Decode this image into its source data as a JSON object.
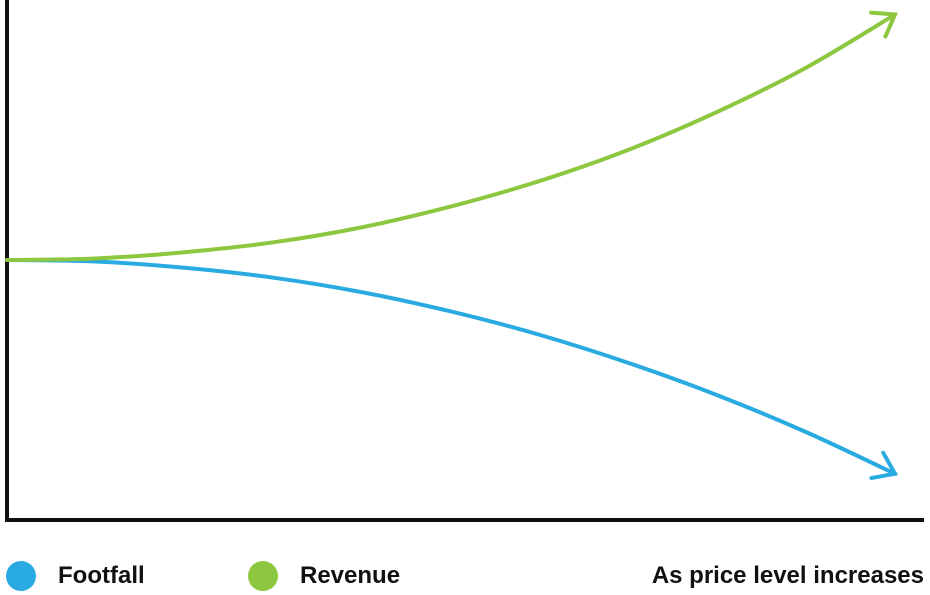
{
  "chart_data": {
    "type": "line",
    "title": "",
    "xlabel": "As price level increases",
    "ylabel": "",
    "xlim": [
      0,
      1
    ],
    "ylim": [
      0,
      1
    ],
    "grid": false,
    "legend_placement": "bottom-left",
    "series": [
      {
        "name": "Footfall",
        "color": "#29abe2",
        "x": [
          0,
          0.1,
          0.2,
          0.3,
          0.4,
          0.5,
          0.6,
          0.7,
          0.8,
          0.9,
          1.0
        ],
        "values": [
          0.5,
          0.497,
          0.485,
          0.466,
          0.438,
          0.401,
          0.356,
          0.302,
          0.24,
          0.169,
          0.089
        ]
      },
      {
        "name": "Revenue",
        "color": "#8dc63f",
        "x": [
          0,
          0.1,
          0.2,
          0.3,
          0.4,
          0.5,
          0.6,
          0.7,
          0.8,
          0.9,
          1.0
        ],
        "values": [
          0.5,
          0.503,
          0.515,
          0.534,
          0.563,
          0.603,
          0.652,
          0.712,
          0.785,
          0.87,
          0.972
        ]
      }
    ]
  }
}
